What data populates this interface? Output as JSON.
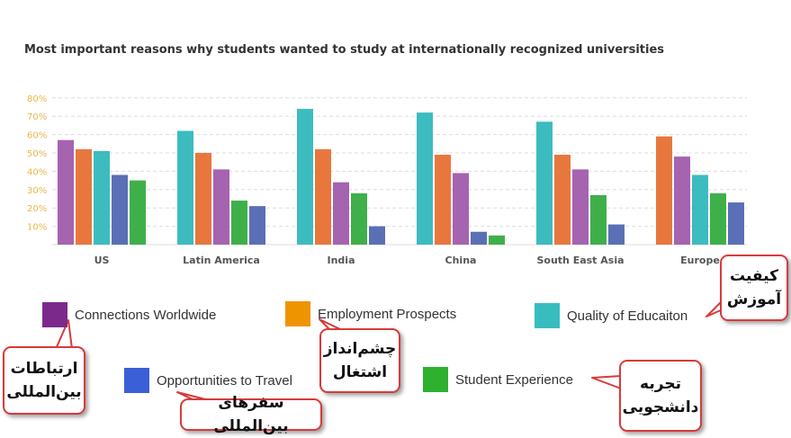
{
  "chart_data": {
    "type": "bar",
    "title": "Most important reasons why students wanted to study at internationally recognized universities",
    "ylim": [
      0,
      80
    ],
    "yticks": [
      "10%",
      "20%",
      "30%",
      "40%",
      "50%",
      "60%",
      "70%",
      "80%"
    ],
    "grid": true,
    "legend_position": "bottom",
    "groups": [
      {
        "category": "US",
        "bars": [
          {
            "series": "Connections Worldwide",
            "value": 57
          },
          {
            "series": "Employment Prospects",
            "value": 52
          },
          {
            "series": "Quality of Educaiton",
            "value": 51
          },
          {
            "series": "Opportunities to Travel",
            "value": 38
          },
          {
            "series": "Student Experience",
            "value": 35
          }
        ]
      },
      {
        "category": "Latin America",
        "bars": [
          {
            "series": "Quality of Educaiton",
            "value": 62
          },
          {
            "series": "Employment Prospects",
            "value": 50
          },
          {
            "series": "Connections Worldwide",
            "value": 41
          },
          {
            "series": "Student Experience",
            "value": 24
          },
          {
            "series": "Opportunities to Travel",
            "value": 21
          }
        ]
      },
      {
        "category": "India",
        "bars": [
          {
            "series": "Quality of Educaiton",
            "value": 74
          },
          {
            "series": "Employment Prospects",
            "value": 52
          },
          {
            "series": "Connections Worldwide",
            "value": 34
          },
          {
            "series": "Student Experience",
            "value": 28
          },
          {
            "series": "Opportunities to Travel",
            "value": 10
          }
        ]
      },
      {
        "category": "China",
        "bars": [
          {
            "series": "Quality of Educaiton",
            "value": 72
          },
          {
            "series": "Employment Prospects",
            "value": 49
          },
          {
            "series": "Connections Worldwide",
            "value": 39
          },
          {
            "series": "Opportunities to Travel",
            "value": 7
          },
          {
            "series": "Student Experience",
            "value": 5
          }
        ]
      },
      {
        "category": "South East Asia",
        "bars": [
          {
            "series": "Quality of Educaiton",
            "value": 67
          },
          {
            "series": "Employment Prospects",
            "value": 49
          },
          {
            "series": "Connections Worldwide",
            "value": 41
          },
          {
            "series": "Student Experience",
            "value": 27
          },
          {
            "series": "Opportunities to Travel",
            "value": 11
          }
        ]
      },
      {
        "category": "Europe",
        "bars": [
          {
            "series": "Employment Prospects",
            "value": 59
          },
          {
            "series": "Connections Worldwide",
            "value": 48
          },
          {
            "series": "Quality of Educaiton",
            "value": 38
          },
          {
            "series": "Student Experience",
            "value": 28
          },
          {
            "series": "Opportunities to Travel",
            "value": 23
          }
        ]
      }
    ],
    "series_colors": {
      "Connections Worldwide": "#a563b0",
      "Employment Prospects": "#e8773e",
      "Quality of Educaiton": "#3dbcbf",
      "Opportunities to Travel": "#5a6fb5",
      "Student Experience": "#3fb049"
    }
  },
  "legend": [
    {
      "label": "Connections Worldwide",
      "color": "#7b2a8c"
    },
    {
      "label": "Employment Prospects",
      "color": "#ee9400"
    },
    {
      "label": "Quality of Educaiton",
      "color": "#38bdbf"
    },
    {
      "label": "Opportunities to Travel",
      "color": "#3a5fd6"
    },
    {
      "label": "Student Experience",
      "color": "#2fb12f"
    }
  ],
  "annotations": [
    {
      "text": "ارتباطات\nبین‌المللی"
    },
    {
      "text": "چشم‌انداز\nاشتغال"
    },
    {
      "text": "کیفیت\nآموزش"
    },
    {
      "text": "سفرهای بین‌المللی"
    },
    {
      "text": "تجربه\nدانشجویی"
    }
  ]
}
